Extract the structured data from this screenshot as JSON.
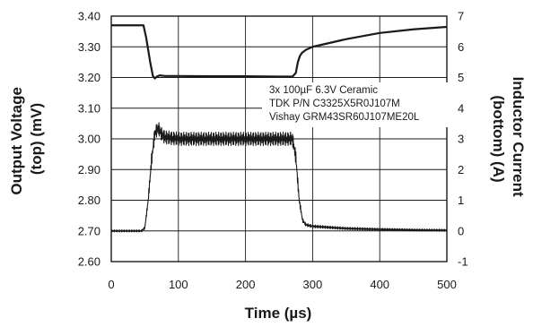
{
  "chart_data": {
    "type": "line",
    "xlabel": "Time (µs)",
    "ylabel_left_lines": [
      "Output Voltage",
      "(top) (mV)"
    ],
    "ylabel_right_lines": [
      "Inductor Current",
      "(bottom) (A)"
    ],
    "xlim": [
      0,
      500
    ],
    "ylim_left": [
      2.6,
      3.4
    ],
    "ylim_right": [
      -1,
      7
    ],
    "x_ticks": [
      "0",
      "100",
      "200",
      "300",
      "400",
      "500"
    ],
    "y_left_ticks": [
      "2.60",
      "2.70",
      "2.80",
      "2.90",
      "3.00",
      "3.10",
      "3.20",
      "3.30",
      "3.40"
    ],
    "y_right_ticks": [
      "-1",
      "0",
      "1",
      "2",
      "3",
      "4",
      "5",
      "6",
      "7"
    ],
    "grid": true,
    "annotation": [
      "3x 100µF 6.3V Ceramic",
      "TDK P/N C3325X5R0J107M",
      "Vishay GRM43SR60J107ME20L"
    ],
    "series": [
      {
        "axis": "left",
        "color": "#1a1a1a",
        "x": [
          0,
          48,
          52,
          58,
          62,
          65,
          68,
          72,
          80,
          100,
          150,
          200,
          250,
          270,
          275,
          278,
          281,
          284,
          290,
          300,
          350,
          400,
          450,
          500
        ],
        "y": [
          3.37,
          3.37,
          3.33,
          3.25,
          3.205,
          3.197,
          3.203,
          3.207,
          3.205,
          3.205,
          3.204,
          3.204,
          3.203,
          3.203,
          3.215,
          3.25,
          3.27,
          3.28,
          3.29,
          3.3,
          3.325,
          3.345,
          3.357,
          3.365
        ]
      },
      {
        "axis": "right",
        "color": "#1a1a1a",
        "x": [
          0,
          45,
          50,
          55,
          60,
          65,
          70,
          75,
          80,
          100,
          150,
          200,
          250,
          270,
          275,
          280,
          285,
          290,
          300,
          350,
          400,
          450,
          500
        ],
        "y": [
          0,
          0,
          0.1,
          1.0,
          2.3,
          3.2,
          3.35,
          3.15,
          3.05,
          3.0,
          3.0,
          3.0,
          3.0,
          3.0,
          2.4,
          1.0,
          0.35,
          0.2,
          0.15,
          0.08,
          0.05,
          0.03,
          0.02
        ],
        "ripple": 0.22
      }
    ]
  }
}
